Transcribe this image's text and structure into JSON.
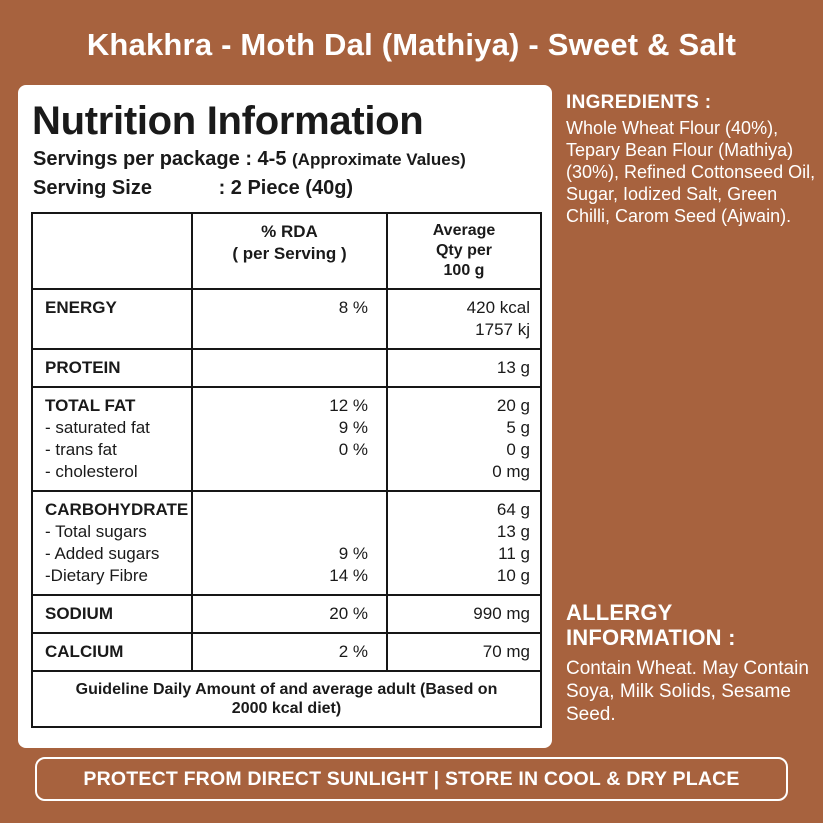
{
  "title": "Khakhra - Moth Dal (Mathiya) - Sweet & Salt",
  "panel": {
    "heading": "Nutrition Information",
    "servings": "Servings per package : 4-5",
    "servings_note": "(Approximate Values)",
    "serving_size_label": "Serving Size",
    "serving_size_value": ": 2 Piece (40g)",
    "table": {
      "rda_header": [
        "% RDA",
        "( per Serving )"
      ],
      "qty_header": [
        "Average",
        "Qty per",
        "100 g"
      ],
      "energy": {
        "label": "ENERGY",
        "rda": "8 %",
        "qty1": "420 kcal",
        "qty2": "1757 kj"
      },
      "protein": {
        "label": "PROTEIN",
        "qty": "13 g"
      },
      "fat": [
        {
          "label": "TOTAL FAT",
          "rda": "12 %",
          "qty": "20 g"
        },
        {
          "label": "- saturated fat",
          "rda": "9 %",
          "qty": "5 g"
        },
        {
          "label": "- trans fat",
          "rda": "0 %",
          "qty": "0 g"
        },
        {
          "label": "- cholesterol",
          "rda": "",
          "qty": "0 mg"
        }
      ],
      "carbohydrate": [
        {
          "label": "CARBOHYDRATE",
          "rda": "",
          "qty": "64 g"
        },
        {
          "label": "- Total sugars",
          "rda": "",
          "qty": "13 g"
        },
        {
          "label": "- Added sugars",
          "rda": "9 %",
          "qty": "11 g"
        },
        {
          "label": "-Dietary Fibre",
          "rda": "14 %",
          "qty": "10 g"
        }
      ],
      "sodium": {
        "label": "SODIUM",
        "rda": "20 %",
        "qty": "990 mg"
      },
      "calcium": {
        "label": "CALCIUM",
        "rda": "2 %",
        "qty": "70 mg"
      }
    },
    "footnote": "Guideline Daily Amount of and average adult (Based on 2000 kcal diet)"
  },
  "ingredients": {
    "heading": "INGREDIENTS :",
    "text": "Whole Wheat Flour (40%), Tepary Bean Flour (Mathiya) (30%), Refined Cottonseed Oil, Sugar, Iodized Salt, Green Chilli, Carom Seed (Ajwain)."
  },
  "allergy": {
    "heading_line1": "ALLERGY",
    "heading_line2": "INFORMATION :",
    "text": "Contain Wheat. May Contain Soya, Milk Solids, Sesame Seed."
  },
  "footer": "PROTECT FROM DIRECT SUNLIGHT | STORE IN COOL & DRY PLACE",
  "colors": {
    "background": "#A7623E",
    "panel": "#FFFFFF",
    "text_dark": "#1A1A1A",
    "text_light": "#FFFFFF"
  }
}
